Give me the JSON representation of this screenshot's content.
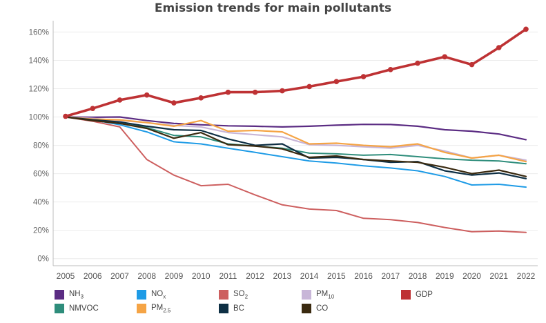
{
  "chart_data": {
    "type": "line",
    "title": "Emission trends for main pollutants",
    "xlabel": "",
    "ylabel": "",
    "ylim": [
      -5,
      168
    ],
    "yticks": [
      0,
      20,
      40,
      60,
      80,
      100,
      120,
      140,
      160
    ],
    "ytick_labels": [
      "0%",
      "20%",
      "40%",
      "60%",
      "80%",
      "100%",
      "120%",
      "140%",
      "160%"
    ],
    "x": [
      2005,
      2006,
      2007,
      2008,
      2009,
      2010,
      2011,
      2012,
      2013,
      2014,
      2015,
      2016,
      2017,
      2018,
      2019,
      2020,
      2021,
      2022
    ],
    "xtick_labels": [
      "2005",
      "2006",
      "2007",
      "2008",
      "2009",
      "2010",
      "2011",
      "2012",
      "2013",
      "2014",
      "2015",
      "2016",
      "2017",
      "2018",
      "2019",
      "2020",
      "2021",
      "2022"
    ],
    "grid": "horizontal",
    "legend_position": "bottom",
    "series": [
      {
        "name": "NH3",
        "label": "NH",
        "sub": "3",
        "color": "#5b2c83",
        "width": 2.2,
        "markers": false,
        "values": [
          100,
          99.8,
          100,
          97.5,
          95.5,
          94.5,
          93.8,
          93.5,
          93,
          93.5,
          94.2,
          94.8,
          94.7,
          93.5,
          91,
          90,
          88,
          84
        ]
      },
      {
        "name": "NOx",
        "label": "NO",
        "sub": "x",
        "color": "#1e9be6",
        "width": 2,
        "markers": false,
        "values": [
          100,
          98,
          94.5,
          89.5,
          82.5,
          81,
          78,
          75,
          72,
          69,
          67.5,
          65.5,
          64,
          62,
          58,
          52,
          52.5,
          50.5
        ]
      },
      {
        "name": "SO2",
        "label": "SO",
        "sub": "2",
        "color": "#cd5f5f",
        "width": 2,
        "markers": false,
        "values": [
          100,
          97,
          93,
          70,
          59,
          51.5,
          52.5,
          45,
          38,
          35,
          34,
          28.5,
          27.5,
          25.5,
          22,
          19,
          19.5,
          18.5
        ]
      },
      {
        "name": "PM10",
        "label": "PM",
        "sub": "10",
        "color": "#c8b6d8",
        "width": 2.2,
        "markers": false,
        "values": [
          100,
          99,
          97.5,
          96,
          94,
          93,
          89,
          87.5,
          86,
          80.5,
          80,
          79,
          78,
          80,
          76,
          71,
          73,
          69.5
        ]
      },
      {
        "name": "GDP",
        "label": "GDP",
        "sub": "",
        "color": "#be3234",
        "width": 3.6,
        "markers": true,
        "values": [
          100.5,
          106,
          112,
          115.5,
          110,
          113.5,
          117.5,
          117.5,
          118.5,
          121.5,
          125,
          128.5,
          133.5,
          138,
          142.5,
          137,
          149,
          162
        ]
      },
      {
        "name": "NMVOC",
        "label": "NMVOC",
        "sub": "",
        "color": "#2e8d7b",
        "width": 2,
        "markers": false,
        "values": [
          100,
          97.5,
          95.5,
          92.5,
          87,
          86,
          81,
          79.5,
          78,
          74.5,
          74,
          73,
          73.5,
          72,
          70.5,
          69.5,
          69,
          67
        ]
      },
      {
        "name": "PM2.5",
        "label": "PM",
        "sub": "2.5",
        "color": "#f5a445",
        "width": 2.2,
        "markers": false,
        "values": [
          100,
          98.5,
          98,
          96,
          93.5,
          97.5,
          90,
          90.5,
          89.5,
          81,
          81.5,
          80,
          79,
          81,
          75,
          71,
          73,
          68.5
        ]
      },
      {
        "name": "BC",
        "label": "BC",
        "sub": "",
        "color": "#0e2f44",
        "width": 2.2,
        "markers": false,
        "values": [
          100,
          98,
          96.5,
          93.5,
          91,
          90.5,
          84.5,
          80,
          81,
          71,
          71.5,
          70,
          68,
          68.5,
          62,
          59,
          60.5,
          56.5
        ]
      },
      {
        "name": "CO",
        "label": "CO",
        "sub": "",
        "color": "#3a2a10",
        "width": 2.2,
        "markers": false,
        "values": [
          100,
          97.5,
          95.5,
          92,
          85,
          89,
          80.5,
          79.5,
          77.5,
          71.5,
          72.5,
          70,
          69,
          68,
          64.5,
          60,
          62.5,
          58
        ]
      }
    ]
  }
}
